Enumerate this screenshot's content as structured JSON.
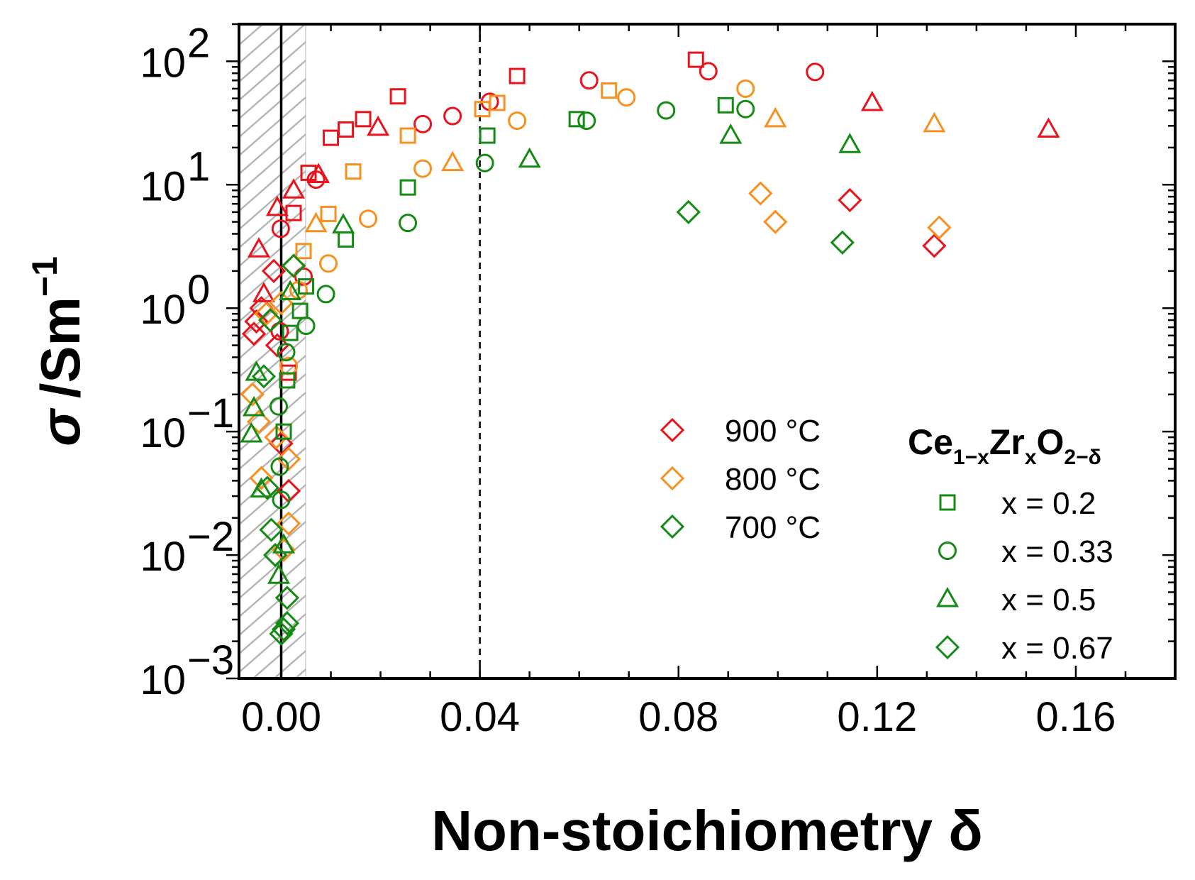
{
  "chart_data": {
    "type": "scatter",
    "xlabel": "Non-stoichiometry δ",
    "ylabel": {
      "symbol": "σ",
      "unit": "/Sm",
      "exp": "−1"
    },
    "xlim": [
      -0.0085,
      0.18
    ],
    "ylim": [
      0.001,
      200
    ],
    "yscale": "log",
    "x_ticks": [
      {
        "value": 0.0,
        "label": "0.00"
      },
      {
        "value": 0.04,
        "label": "0.04"
      },
      {
        "value": 0.08,
        "label": "0.08"
      },
      {
        "value": 0.12,
        "label": "0.12"
      },
      {
        "value": 0.16,
        "label": "0.16"
      }
    ],
    "y_ticks": [
      {
        "value": 0.001,
        "base": "10",
        "exp": "−3"
      },
      {
        "value": 0.01,
        "base": "10",
        "exp": "−2"
      },
      {
        "value": 0.1,
        "base": "10",
        "exp": "−1"
      },
      {
        "value": 1,
        "base": "10",
        "exp": "0"
      },
      {
        "value": 10,
        "base": "10",
        "exp": "1"
      },
      {
        "value": 100,
        "base": "10",
        "exp": "2"
      }
    ],
    "hatched_region": [
      -0.0085,
      0.005
    ],
    "reference_lines": [
      {
        "x": 0.0,
        "style": "solid"
      },
      {
        "x": 0.04,
        "style": "dashed"
      }
    ],
    "colors": {
      "900": "#e8141c",
      "800": "#f7901e",
      "700": "#158a15"
    },
    "temperature_legend": [
      {
        "label": "900 °C",
        "color_key": "900"
      },
      {
        "label": "800 °C",
        "color_key": "800"
      },
      {
        "label": "700 °C",
        "color_key": "700"
      }
    ],
    "composition_legend": {
      "title": {
        "main1": "Ce",
        "sub1": "1−x",
        "main2": "Zr",
        "sub2": "x",
        "main3": "O",
        "sub3": "2−δ"
      },
      "items": [
        {
          "label": "x = 0.2",
          "marker": "square"
        },
        {
          "label": "x = 0.33",
          "marker": "circle"
        },
        {
          "label": "x = 0.5",
          "marker": "triangle"
        },
        {
          "label": "x = 0.67",
          "marker": "diamond"
        }
      ]
    },
    "series": [
      {
        "name": "900 °C, x = 0.2",
        "temp": "900",
        "marker": "square",
        "points": [
          [
            0.0015,
            0.3
          ],
          [
            0.0025,
            5.9
          ],
          [
            0.0055,
            12.5
          ],
          [
            0.01,
            24
          ],
          [
            0.013,
            28
          ],
          [
            0.0165,
            34
          ],
          [
            0.0235,
            52
          ],
          [
            0.0475,
            76
          ],
          [
            0.0835,
            103
          ]
        ]
      },
      {
        "name": "900 °C, x = 0.33",
        "temp": "900",
        "marker": "circle",
        "points": [
          [
            -0.0003,
            0.65
          ],
          [
            -0.0001,
            4.4
          ],
          [
            0.0045,
            1.8
          ],
          [
            0.007,
            11
          ],
          [
            0.0285,
            31
          ],
          [
            0.0345,
            36
          ],
          [
            0.042,
            47
          ],
          [
            0.062,
            70
          ],
          [
            0.086,
            83
          ],
          [
            0.1075,
            82
          ]
        ]
      },
      {
        "name": "900 °C, x = 0.5",
        "temp": "900",
        "marker": "triangle",
        "points": [
          [
            -0.0045,
            3
          ],
          [
            -0.0035,
            1.3
          ],
          [
            -0.0008,
            6.5
          ],
          [
            0.0025,
            9
          ],
          [
            0.0075,
            12
          ],
          [
            0.0195,
            29
          ],
          [
            0.119,
            46
          ],
          [
            0.1545,
            28
          ]
        ]
      },
      {
        "name": "900 °C, x = 0.67",
        "temp": "900",
        "marker": "diamond",
        "points": [
          [
            -0.0055,
            0.62
          ],
          [
            -0.005,
            0.78
          ],
          [
            -0.004,
            1.0
          ],
          [
            -0.0015,
            2.0
          ],
          [
            -0.0008,
            0.5
          ],
          [
            0.0,
            0.08
          ],
          [
            0.0015,
            0.033
          ],
          [
            0.1145,
            7.5
          ],
          [
            0.1315,
            3.2
          ]
        ]
      },
      {
        "name": "800 °C, x = 0.2",
        "temp": "800",
        "marker": "square",
        "points": [
          [
            0.0045,
            2.9
          ],
          [
            0.0095,
            5.8
          ],
          [
            0.0145,
            12.8
          ],
          [
            0.0255,
            25
          ],
          [
            0.0405,
            41
          ],
          [
            0.0435,
            46
          ],
          [
            0.066,
            58
          ]
        ]
      },
      {
        "name": "800 °C, x = 0.33",
        "temp": "800",
        "marker": "circle",
        "points": [
          [
            0.0015,
            0.34
          ],
          [
            0.0035,
            1.4
          ],
          [
            0.0095,
            2.3
          ],
          [
            0.0175,
            5.3
          ],
          [
            0.0285,
            13.5
          ],
          [
            0.0475,
            33
          ],
          [
            0.0695,
            51
          ],
          [
            0.0935,
            60
          ]
        ]
      },
      {
        "name": "800 °C, x = 0.5",
        "temp": "800",
        "marker": "triangle",
        "points": [
          [
            0.007,
            4.8
          ],
          [
            0.0345,
            15
          ],
          [
            0.0995,
            34
          ],
          [
            0.1315,
            31
          ]
        ]
      },
      {
        "name": "800 °C, x = 0.67",
        "temp": "800",
        "marker": "diamond",
        "points": [
          [
            -0.0058,
            0.2
          ],
          [
            -0.0045,
            0.12
          ],
          [
            -0.003,
            0.9
          ],
          [
            -0.004,
            0.042
          ],
          [
            -0.001,
            0.09
          ],
          [
            0.0,
            1.1
          ],
          [
            0.0015,
            0.06
          ],
          [
            0.0015,
            0.018
          ],
          [
            0.0005,
            0.011
          ],
          [
            0.0025,
            2.2
          ],
          [
            0.0965,
            8.5
          ],
          [
            0.0995,
            5.0
          ],
          [
            0.1325,
            4.5
          ]
        ]
      },
      {
        "name": "700 °C, x = 0.2",
        "temp": "700",
        "marker": "square",
        "points": [
          [
            0.0005,
            0.1
          ],
          [
            0.0012,
            0.26
          ],
          [
            0.0018,
            0.63
          ],
          [
            0.0038,
            0.95
          ],
          [
            0.005,
            1.5
          ],
          [
            0.013,
            3.6
          ],
          [
            0.0255,
            9.5
          ],
          [
            0.0415,
            25
          ],
          [
            0.0595,
            34
          ],
          [
            0.0895,
            44
          ]
        ]
      },
      {
        "name": "700 °C, x = 0.33",
        "temp": "700",
        "marker": "circle",
        "points": [
          [
            -0.0003,
            0.052
          ],
          [
            -0.0005,
            0.16
          ],
          [
            0.0,
            0.028
          ],
          [
            0.001,
            0.44
          ],
          [
            0.005,
            0.72
          ],
          [
            0.009,
            1.3
          ],
          [
            0.0255,
            4.9
          ],
          [
            0.041,
            15
          ],
          [
            0.0615,
            33
          ],
          [
            0.0775,
            40
          ],
          [
            0.0935,
            41
          ]
        ]
      },
      {
        "name": "700 °C, x = 0.5",
        "temp": "700",
        "marker": "triangle",
        "points": [
          [
            -0.006,
            0.095
          ],
          [
            -0.0055,
            0.155
          ],
          [
            -0.005,
            0.3
          ],
          [
            -0.004,
            0.034
          ],
          [
            -0.0005,
            0.0068
          ],
          [
            0.0005,
            0.012
          ],
          [
            0.0018,
            1.35
          ],
          [
            0.0125,
            4.7
          ],
          [
            0.05,
            16
          ],
          [
            0.0905,
            25
          ],
          [
            0.1145,
            21
          ]
        ]
      },
      {
        "name": "700 °C, x = 0.67",
        "temp": "700",
        "marker": "diamond",
        "points": [
          [
            -0.0035,
            0.28
          ],
          [
            -0.0028,
            0.035
          ],
          [
            -0.0022,
            0.8
          ],
          [
            -0.002,
            0.016
          ],
          [
            -0.0012,
            0.01
          ],
          [
            0.0,
            0.0023
          ],
          [
            0.0005,
            0.0025
          ],
          [
            0.0012,
            0.0045
          ],
          [
            0.0012,
            0.0028
          ],
          [
            0.0025,
            2.2
          ],
          [
            0.082,
            6
          ],
          [
            0.113,
            3.4
          ]
        ]
      }
    ]
  }
}
